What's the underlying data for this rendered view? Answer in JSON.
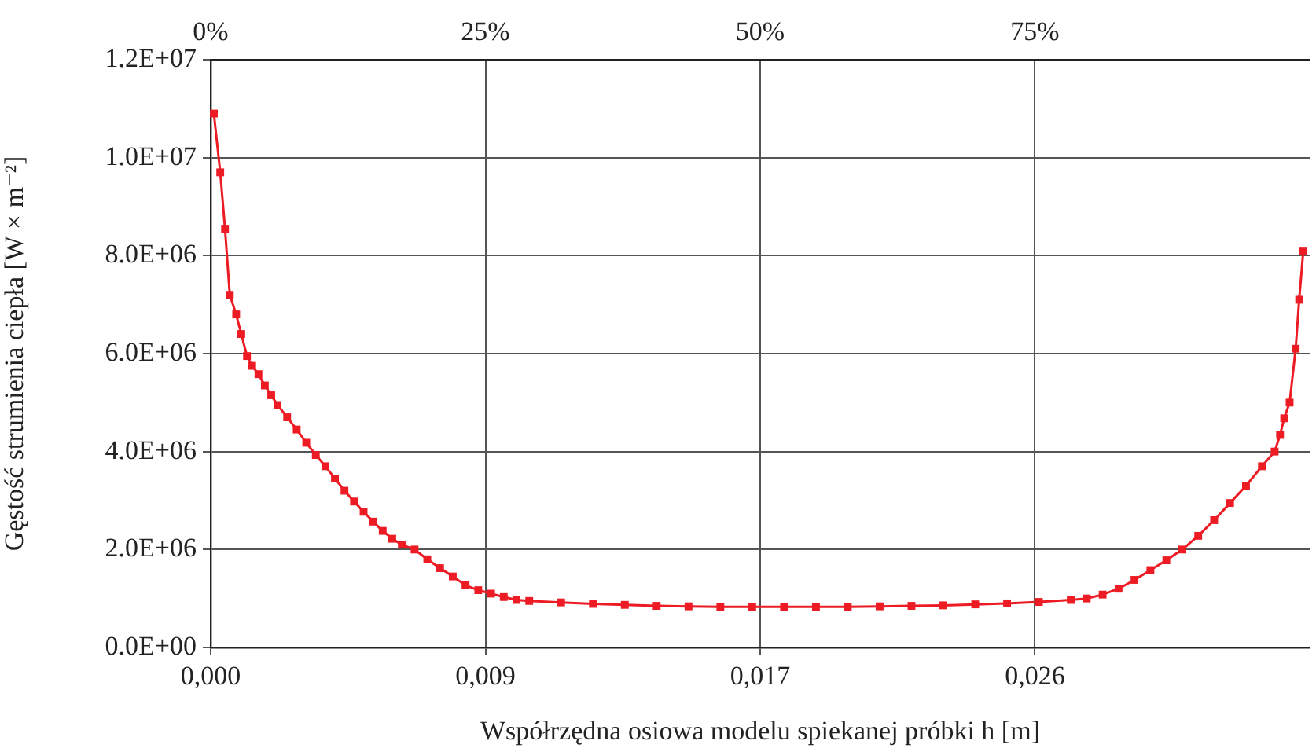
{
  "chart_data": {
    "type": "line",
    "xlabel": "Współrzędna osiowa modelu spiekanej próbki h [m]",
    "ylabel": "Gęstość strumienia ciepła [W × m⁻²]",
    "xlim": [
      0,
      0.0345
    ],
    "xticks": [
      {
        "value": 0,
        "label": "0,000"
      },
      {
        "value": 0.008625,
        "label": "0,009"
      },
      {
        "value": 0.01725,
        "label": "0,017"
      },
      {
        "value": 0.025875,
        "label": "0,026"
      }
    ],
    "x2lim": [
      0,
      100
    ],
    "x2ticks": [
      {
        "value": 0,
        "label": "0%"
      },
      {
        "value": 25,
        "label": "25%"
      },
      {
        "value": 50,
        "label": "50%"
      },
      {
        "value": 75,
        "label": "75%"
      }
    ],
    "ylim": [
      0,
      12000000
    ],
    "yticks": [
      {
        "value": 0,
        "label": "0.0E+00"
      },
      {
        "value": 2000000,
        "label": "2.0E+06"
      },
      {
        "value": 4000000,
        "label": "4.0E+06"
      },
      {
        "value": 6000000,
        "label": "6.0E+06"
      },
      {
        "value": 8000000,
        "label": "8.0E+06"
      },
      {
        "value": 10000000,
        "label": "1.0E+07"
      },
      {
        "value": 12000000,
        "label": "1.2E+07"
      }
    ],
    "grid": true,
    "marker": "square",
    "line_style": "solid",
    "x": [
      0.0001,
      0.0003,
      0.00045,
      0.0006,
      0.0008,
      0.00096,
      0.00114,
      0.0013,
      0.0015,
      0.0017,
      0.0019,
      0.0021,
      0.0024,
      0.0027,
      0.003,
      0.0033,
      0.0036,
      0.0039,
      0.0042,
      0.0045,
      0.0048,
      0.0051,
      0.0054,
      0.0057,
      0.006,
      0.0064,
      0.0068,
      0.0072,
      0.0076,
      0.008,
      0.0084,
      0.0088,
      0.0092,
      0.0096,
      0.01,
      0.011,
      0.012,
      0.013,
      0.014,
      0.015,
      0.016,
      0.017,
      0.018,
      0.019,
      0.02,
      0.021,
      0.022,
      0.023,
      0.024,
      0.025,
      0.026,
      0.027,
      0.0275,
      0.028,
      0.0285,
      0.029,
      0.0295,
      0.03,
      0.0305,
      0.031,
      0.0315,
      0.032,
      0.0325,
      0.033,
      0.0334,
      0.03357,
      0.0337,
      0.03387,
      0.03406,
      0.03417,
      0.0343
    ],
    "series": [
      {
        "color": "#ed1c24",
        "values": [
          10900000,
          9700000,
          8550000,
          7200000,
          6800000,
          6400000,
          5950000,
          5750000,
          5580000,
          5350000,
          5150000,
          4950000,
          4700000,
          4450000,
          4180000,
          3930000,
          3700000,
          3450000,
          3200000,
          2980000,
          2770000,
          2570000,
          2380000,
          2220000,
          2100000,
          2000000,
          1800000,
          1620000,
          1450000,
          1270000,
          1170000,
          1100000,
          1030000,
          970000,
          950000,
          920000,
          890000,
          870000,
          850000,
          840000,
          830000,
          830000,
          830000,
          830000,
          830000,
          840000,
          850000,
          860000,
          880000,
          900000,
          930000,
          970000,
          1000000,
          1080000,
          1200000,
          1380000,
          1580000,
          1780000,
          2000000,
          2280000,
          2600000,
          2950000,
          3300000,
          3700000,
          4000000,
          4340000,
          4680000,
          5000000,
          6100000,
          7100000,
          8100000
        ]
      }
    ]
  }
}
